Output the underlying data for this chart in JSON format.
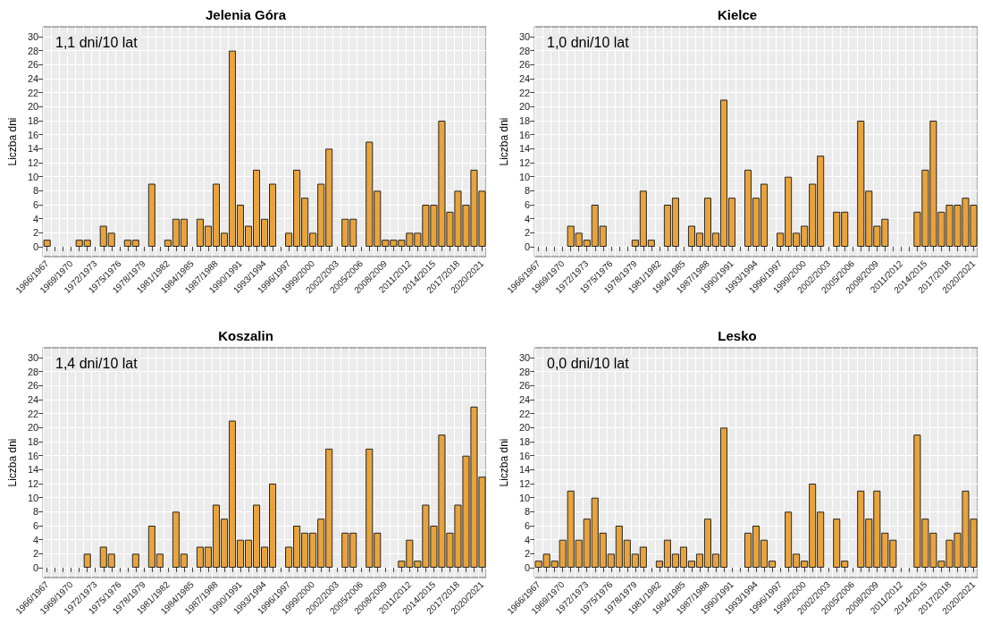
{
  "chart_data": [
    {
      "type": "bar",
      "title": "Jelenia Góra",
      "ylabel": "Liczba dni",
      "annotations": [
        "1,1 dni/10 lat"
      ],
      "color": "#e8a33d",
      "grid": true,
      "ylim": [
        -1.4,
        31.4
      ],
      "yticks": [
        0,
        2,
        4,
        6,
        8,
        10,
        12,
        14,
        16,
        18,
        20,
        22,
        24,
        26,
        28,
        30
      ],
      "categories": [
        "1966/1967",
        null,
        null,
        "1969/1970",
        null,
        null,
        "1972/1973",
        null,
        null,
        "1975/1976",
        null,
        null,
        "1978/1979",
        null,
        null,
        "1981/1982",
        null,
        null,
        "1984/1985",
        null,
        null,
        "1987/1988",
        null,
        null,
        "1990/1991",
        null,
        null,
        "1993/1994",
        null,
        null,
        "1996/1997",
        null,
        null,
        "1999/2000",
        null,
        null,
        "2002/2003",
        null,
        null,
        "2005/2006",
        null,
        null,
        "2008/2009",
        null,
        null,
        "2011/2012",
        null,
        null,
        "2014/2015",
        null,
        null,
        "2017/2018",
        null,
        null,
        "2020/2021"
      ],
      "values": [
        1,
        0,
        0,
        0,
        1,
        1,
        0,
        3,
        2,
        0,
        1,
        1,
        0,
        9,
        0,
        1,
        4,
        4,
        0,
        4,
        3,
        9,
        2,
        28,
        6,
        3,
        11,
        4,
        9,
        0,
        2,
        11,
        7,
        2,
        9,
        14,
        0,
        4,
        4,
        0,
        15,
        8,
        1,
        1,
        1,
        2,
        2,
        6,
        6,
        18,
        5,
        8,
        6,
        11,
        8
      ]
    },
    {
      "type": "bar",
      "title": "Kielce",
      "ylabel": "Liczba dni",
      "annotations": [
        "1,0 dni/10 lat"
      ],
      "color": "#e8a33d",
      "grid": true,
      "ylim": [
        -1.4,
        31.4
      ],
      "yticks": [
        0,
        2,
        4,
        6,
        8,
        10,
        12,
        14,
        16,
        18,
        20,
        22,
        24,
        26,
        28,
        30
      ],
      "categories": [
        "1966/1967",
        null,
        null,
        "1969/1970",
        null,
        null,
        "1972/1973",
        null,
        null,
        "1975/1976",
        null,
        null,
        "1978/1979",
        null,
        null,
        "1981/1982",
        null,
        null,
        "1984/1985",
        null,
        null,
        "1987/1988",
        null,
        null,
        "1990/1991",
        null,
        null,
        "1993/1994",
        null,
        null,
        "1996/1997",
        null,
        null,
        "1999/2000",
        null,
        null,
        "2002/2003",
        null,
        null,
        "2005/2006",
        null,
        null,
        "2008/2009",
        null,
        null,
        "2011/2012",
        null,
        null,
        "2014/2015",
        null,
        null,
        "2017/2018",
        null,
        null,
        "2020/2021"
      ],
      "values": [
        0,
        0,
        0,
        0,
        3,
        2,
        1,
        6,
        3,
        0,
        0,
        0,
        1,
        8,
        1,
        0,
        6,
        7,
        0,
        3,
        2,
        7,
        2,
        21,
        7,
        0,
        11,
        7,
        9,
        0,
        2,
        10,
        2,
        3,
        9,
        13,
        0,
        5,
        5,
        0,
        18,
        8,
        3,
        4,
        0,
        0,
        0,
        5,
        11,
        18,
        5,
        6,
        6,
        7,
        6
      ]
    },
    {
      "type": "bar",
      "title": "Koszalin",
      "ylabel": "Liczba dni",
      "annotations": [
        "1,4 dni/10 lat"
      ],
      "color": "#e8a33d",
      "grid": true,
      "ylim": [
        -1.4,
        31.4
      ],
      "yticks": [
        0,
        2,
        4,
        6,
        8,
        10,
        12,
        14,
        16,
        18,
        20,
        22,
        24,
        26,
        28,
        30
      ],
      "categories": [
        "1966/1967",
        null,
        null,
        "1969/1970",
        null,
        null,
        "1972/1973",
        null,
        null,
        "1975/1976",
        null,
        null,
        "1978/1979",
        null,
        null,
        "1981/1982",
        null,
        null,
        "1984/1985",
        null,
        null,
        "1987/1988",
        null,
        null,
        "1990/1991",
        null,
        null,
        "1993/1994",
        null,
        null,
        "1996/1997",
        null,
        null,
        "1999/2000",
        null,
        null,
        "2002/2003",
        null,
        null,
        "2005/2006",
        null,
        null,
        "2008/2009",
        null,
        null,
        "2011/2012",
        null,
        null,
        "2014/2015",
        null,
        null,
        "2017/2018",
        null,
        null,
        "2020/2021"
      ],
      "values": [
        0,
        0,
        0,
        0,
        0,
        2,
        0,
        3,
        2,
        0,
        0,
        2,
        0,
        6,
        2,
        0,
        8,
        2,
        0,
        3,
        3,
        9,
        7,
        21,
        4,
        4,
        9,
        3,
        12,
        0,
        3,
        6,
        5,
        5,
        7,
        17,
        0,
        5,
        5,
        0,
        17,
        5,
        0,
        0,
        1,
        4,
        1,
        9,
        6,
        19,
        5,
        9,
        16,
        23,
        13
      ]
    },
    {
      "type": "bar",
      "title": "Lesko",
      "ylabel": "Liczba dni",
      "annotations": [
        "0,0 dni/10 lat"
      ],
      "color": "#e8a33d",
      "grid": true,
      "ylim": [
        -1.4,
        31.4
      ],
      "yticks": [
        0,
        2,
        4,
        6,
        8,
        10,
        12,
        14,
        16,
        18,
        20,
        22,
        24,
        26,
        28,
        30
      ],
      "categories": [
        "1966/1967",
        null,
        null,
        "1969/1970",
        null,
        null,
        "1972/1973",
        null,
        null,
        "1975/1976",
        null,
        null,
        "1978/1979",
        null,
        null,
        "1981/1982",
        null,
        null,
        "1984/1985",
        null,
        null,
        "1987/1988",
        null,
        null,
        "1990/1991",
        null,
        null,
        "1993/1994",
        null,
        null,
        "1996/1997",
        null,
        null,
        "1999/2000",
        null,
        null,
        "2002/2003",
        null,
        null,
        "2005/2006",
        null,
        null,
        "2008/2009",
        null,
        null,
        "2011/2012",
        null,
        null,
        "2014/2015",
        null,
        null,
        "2017/2018",
        null,
        null,
        "2020/2021"
      ],
      "values": [
        1,
        2,
        1,
        4,
        11,
        4,
        7,
        10,
        5,
        2,
        6,
        4,
        2,
        3,
        0,
        1,
        4,
        2,
        3,
        1,
        2,
        7,
        2,
        20,
        0,
        0,
        5,
        6,
        4,
        1,
        0,
        8,
        2,
        1,
        12,
        8,
        0,
        7,
        1,
        0,
        11,
        7,
        11,
        5,
        4,
        0,
        0,
        19,
        7,
        5,
        1,
        4,
        5,
        11,
        7
      ]
    }
  ]
}
